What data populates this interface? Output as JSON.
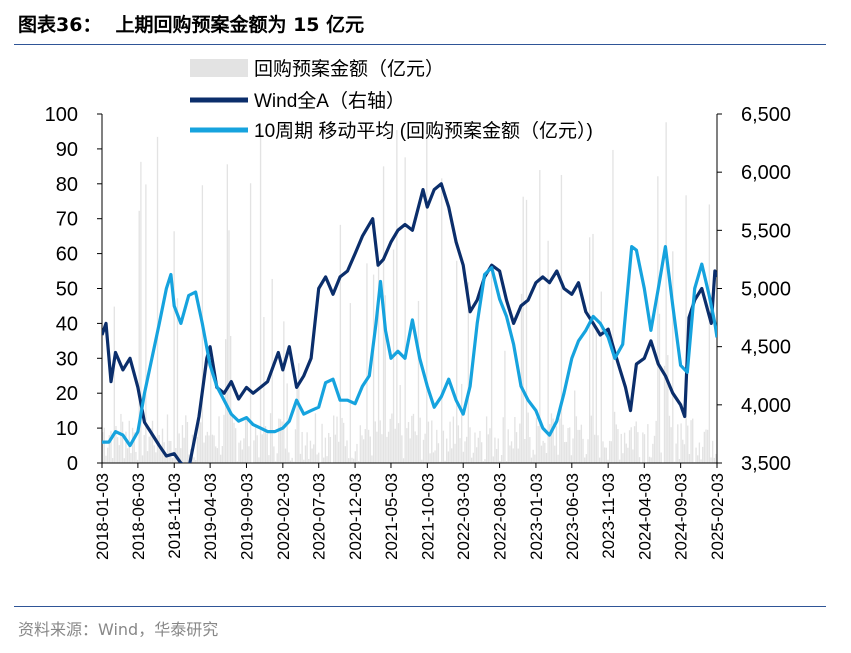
{
  "title": {
    "label": "图表36：",
    "text": "上期回购预案金额为 15 亿元"
  },
  "source": "资料来源：Wind，华泰研究",
  "colors": {
    "bars": "#e3e3e3",
    "wind": "#0b2e6b",
    "ma": "#16a3de",
    "rule": "#2f5597"
  },
  "chart_data": {
    "type": "bar+line",
    "legend": [
      {
        "key": "bars",
        "label": "回购预案金额（亿元）",
        "style": "bar"
      },
      {
        "key": "wind",
        "label": "Wind全A（右轴）",
        "style": "line"
      },
      {
        "key": "ma",
        "label": "10周期 移动平均 (回购预案金额（亿元）)",
        "style": "line"
      }
    ],
    "left_axis": {
      "min": 0,
      "max": 100,
      "ticks": [
        "0",
        "10",
        "20",
        "30",
        "40",
        "50",
        "60",
        "70",
        "80",
        "90",
        "100"
      ]
    },
    "right_axis": {
      "min": 3500,
      "max": 6500,
      "ticks": [
        "3,500",
        "4,000",
        "4,500",
        "5,000",
        "5,500",
        "6,000",
        "6,500"
      ]
    },
    "x_range": [
      "2018-01-03",
      "2025-02-03"
    ],
    "x_ticks": [
      "2018-01-03",
      "2018-06-03",
      "2018-11-03",
      "2019-04-03",
      "2019-09-03",
      "2020-02-03",
      "2020-07-03",
      "2020-12-03",
      "2021-05-03",
      "2021-10-03",
      "2022-03-03",
      "2022-08-03",
      "2023-01-03",
      "2023-06-03",
      "2023-11-03",
      "2024-04-03",
      "2024-09-03",
      "2025-02-03"
    ],
    "series": [
      {
        "name": "Wind全A（右轴）",
        "axis": "right",
        "points": [
          [
            "2018-01-03",
            4600
          ],
          [
            "2018-01-20",
            4700
          ],
          [
            "2018-02-10",
            4200
          ],
          [
            "2018-03-01",
            4450
          ],
          [
            "2018-04-01",
            4300
          ],
          [
            "2018-05-01",
            4400
          ],
          [
            "2018-06-03",
            4150
          ],
          [
            "2018-07-01",
            3850
          ],
          [
            "2018-08-01",
            3750
          ],
          [
            "2018-09-01",
            3650
          ],
          [
            "2018-10-01",
            3560
          ],
          [
            "2018-11-03",
            3580
          ],
          [
            "2018-12-01",
            3500
          ],
          [
            "2019-01-03",
            3450
          ],
          [
            "2019-02-15",
            3900
          ],
          [
            "2019-03-20",
            4400
          ],
          [
            "2019-04-03",
            4500
          ],
          [
            "2019-05-01",
            4150
          ],
          [
            "2019-06-01",
            4100
          ],
          [
            "2019-07-01",
            4200
          ],
          [
            "2019-08-01",
            4050
          ],
          [
            "2019-09-03",
            4150
          ],
          [
            "2019-10-01",
            4100
          ],
          [
            "2019-11-01",
            4150
          ],
          [
            "2019-12-01",
            4200
          ],
          [
            "2020-01-15",
            4450
          ],
          [
            "2020-02-03",
            4300
          ],
          [
            "2020-03-01",
            4500
          ],
          [
            "2020-04-01",
            4150
          ],
          [
            "2020-05-01",
            4250
          ],
          [
            "2020-06-01",
            4400
          ],
          [
            "2020-07-03",
            5000
          ],
          [
            "2020-08-01",
            5100
          ],
          [
            "2020-09-01",
            4950
          ],
          [
            "2020-10-01",
            5100
          ],
          [
            "2020-11-01",
            5150
          ],
          [
            "2020-12-03",
            5300
          ],
          [
            "2021-01-03",
            5450
          ],
          [
            "2021-02-15",
            5600
          ],
          [
            "2021-03-10",
            5200
          ],
          [
            "2021-04-01",
            5250
          ],
          [
            "2021-05-03",
            5400
          ],
          [
            "2021-06-01",
            5500
          ],
          [
            "2021-07-01",
            5550
          ],
          [
            "2021-08-01",
            5500
          ],
          [
            "2021-09-15",
            5850
          ],
          [
            "2021-10-03",
            5700
          ],
          [
            "2021-11-01",
            5850
          ],
          [
            "2021-12-01",
            5900
          ],
          [
            "2022-01-01",
            5700
          ],
          [
            "2022-02-01",
            5400
          ],
          [
            "2022-03-03",
            5200
          ],
          [
            "2022-04-01",
            4800
          ],
          [
            "2022-05-01",
            4900
          ],
          [
            "2022-06-01",
            5100
          ],
          [
            "2022-07-01",
            5200
          ],
          [
            "2022-08-03",
            5150
          ],
          [
            "2022-09-01",
            4900
          ],
          [
            "2022-10-01",
            4700
          ],
          [
            "2022-11-01",
            4850
          ],
          [
            "2022-12-01",
            4900
          ],
          [
            "2023-01-03",
            5050
          ],
          [
            "2023-02-01",
            5100
          ],
          [
            "2023-03-01",
            5050
          ],
          [
            "2023-04-01",
            5150
          ],
          [
            "2023-05-01",
            5000
          ],
          [
            "2023-06-03",
            4950
          ],
          [
            "2023-07-01",
            5050
          ],
          [
            "2023-08-01",
            4800
          ],
          [
            "2023-09-01",
            4700
          ],
          [
            "2023-10-01",
            4600
          ],
          [
            "2023-11-03",
            4650
          ],
          [
            "2023-12-01",
            4450
          ],
          [
            "2024-01-15",
            4150
          ],
          [
            "2024-02-05",
            3950
          ],
          [
            "2024-03-01",
            4350
          ],
          [
            "2024-04-03",
            4400
          ],
          [
            "2024-05-01",
            4550
          ],
          [
            "2024-06-01",
            4350
          ],
          [
            "2024-07-01",
            4250
          ],
          [
            "2024-08-01",
            4100
          ],
          [
            "2024-09-03",
            4000
          ],
          [
            "2024-09-20",
            3900
          ],
          [
            "2024-10-08",
            4750
          ],
          [
            "2024-11-01",
            4900
          ],
          [
            "2024-12-01",
            5000
          ],
          [
            "2025-01-10",
            4700
          ],
          [
            "2025-01-25",
            5150
          ],
          [
            "2025-02-03",
            5100
          ]
        ]
      },
      {
        "name": "10周期 移动平均 (回购预案金额（亿元）)",
        "axis": "left",
        "points": [
          [
            "2018-01-03",
            6
          ],
          [
            "2018-02-01",
            6
          ],
          [
            "2018-03-01",
            9
          ],
          [
            "2018-04-01",
            8
          ],
          [
            "2018-05-01",
            5
          ],
          [
            "2018-06-03",
            9
          ],
          [
            "2018-07-01",
            20
          ],
          [
            "2018-08-01",
            30
          ],
          [
            "2018-09-01",
            40
          ],
          [
            "2018-10-01",
            50
          ],
          [
            "2018-10-20",
            54
          ],
          [
            "2018-11-03",
            45
          ],
          [
            "2018-12-01",
            40
          ],
          [
            "2019-01-03",
            48
          ],
          [
            "2019-02-01",
            49
          ],
          [
            "2019-03-01",
            40
          ],
          [
            "2019-04-03",
            28
          ],
          [
            "2019-05-01",
            22
          ],
          [
            "2019-06-01",
            18
          ],
          [
            "2019-07-01",
            14
          ],
          [
            "2019-08-01",
            12
          ],
          [
            "2019-09-03",
            13
          ],
          [
            "2019-10-01",
            11
          ],
          [
            "2019-11-01",
            10
          ],
          [
            "2019-12-01",
            9
          ],
          [
            "2020-01-01",
            9
          ],
          [
            "2020-02-03",
            10
          ],
          [
            "2020-03-01",
            12
          ],
          [
            "2020-04-01",
            18
          ],
          [
            "2020-05-01",
            14
          ],
          [
            "2020-06-01",
            15
          ],
          [
            "2020-07-03",
            16
          ],
          [
            "2020-08-01",
            23
          ],
          [
            "2020-09-01",
            24
          ],
          [
            "2020-10-01",
            18
          ],
          [
            "2020-11-01",
            18
          ],
          [
            "2020-12-03",
            17
          ],
          [
            "2021-01-03",
            22
          ],
          [
            "2021-02-01",
            25
          ],
          [
            "2021-03-01",
            40
          ],
          [
            "2021-03-20",
            52
          ],
          [
            "2021-04-10",
            38
          ],
          [
            "2021-05-03",
            30
          ],
          [
            "2021-06-01",
            32
          ],
          [
            "2021-07-01",
            30
          ],
          [
            "2021-08-01",
            41
          ],
          [
            "2021-09-01",
            30
          ],
          [
            "2021-10-03",
            22
          ],
          [
            "2021-11-01",
            16
          ],
          [
            "2021-12-01",
            19
          ],
          [
            "2022-01-01",
            24
          ],
          [
            "2022-02-01",
            18
          ],
          [
            "2022-03-03",
            14
          ],
          [
            "2022-04-01",
            22
          ],
          [
            "2022-05-01",
            40
          ],
          [
            "2022-06-01",
            54
          ],
          [
            "2022-07-01",
            56
          ],
          [
            "2022-08-03",
            47
          ],
          [
            "2022-09-01",
            42
          ],
          [
            "2022-10-01",
            34
          ],
          [
            "2022-11-01",
            22
          ],
          [
            "2022-12-01",
            18
          ],
          [
            "2023-01-03",
            15
          ],
          [
            "2023-02-01",
            10
          ],
          [
            "2023-03-01",
            8
          ],
          [
            "2023-04-01",
            12
          ],
          [
            "2023-05-01",
            20
          ],
          [
            "2023-06-03",
            30
          ],
          [
            "2023-07-01",
            35
          ],
          [
            "2023-08-01",
            38
          ],
          [
            "2023-09-01",
            42
          ],
          [
            "2023-10-01",
            40
          ],
          [
            "2023-11-03",
            36
          ],
          [
            "2023-12-01",
            30
          ],
          [
            "2024-01-03",
            34
          ],
          [
            "2024-02-10",
            62
          ],
          [
            "2024-03-01",
            61
          ],
          [
            "2024-04-03",
            50
          ],
          [
            "2024-05-01",
            38
          ],
          [
            "2024-06-01",
            50
          ],
          [
            "2024-07-01",
            62
          ],
          [
            "2024-08-01",
            45
          ],
          [
            "2024-09-03",
            28
          ],
          [
            "2024-10-01",
            26
          ],
          [
            "2024-11-01",
            50
          ],
          [
            "2024-12-01",
            57
          ],
          [
            "2025-01-01",
            48
          ],
          [
            "2025-01-25",
            40
          ],
          [
            "2025-02-03",
            36
          ]
        ]
      }
    ]
  }
}
